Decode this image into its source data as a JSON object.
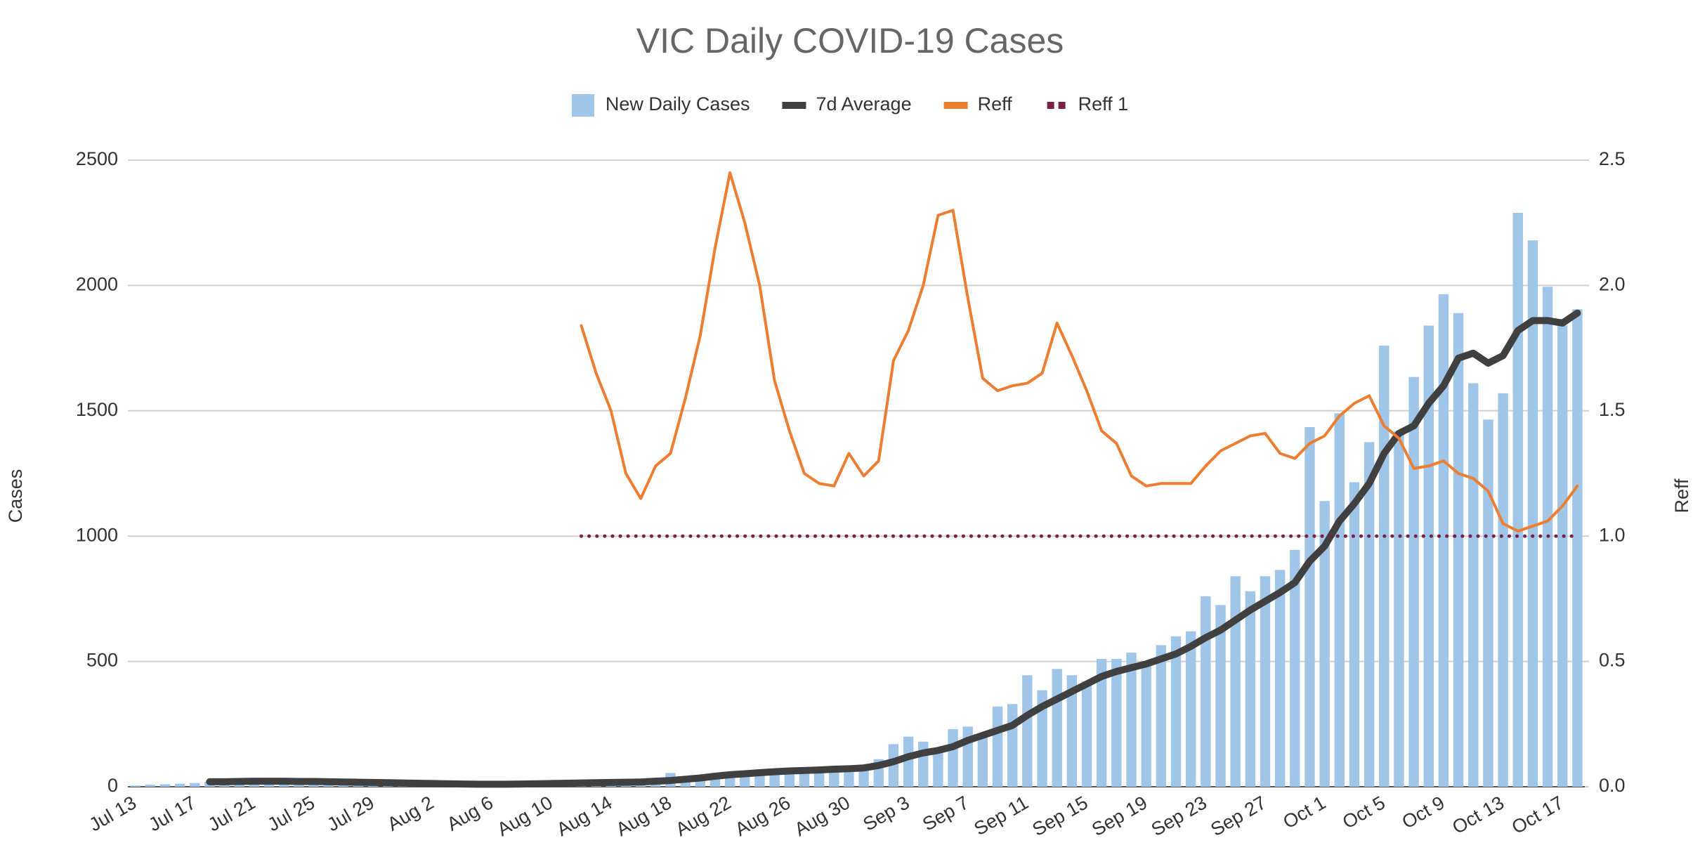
{
  "chart_data": {
    "type": "combo",
    "title": "VIC Daily COVID-19 Cases",
    "y_label": "Cases",
    "y2_label": "Reff",
    "categories": [
      "Jul 13",
      null,
      null,
      null,
      "Jul 17",
      null,
      null,
      null,
      "Jul 21",
      null,
      null,
      null,
      "Jul 25",
      null,
      null,
      null,
      "Jul 29",
      null,
      null,
      null,
      "Aug 2",
      null,
      null,
      null,
      "Aug 6",
      null,
      null,
      null,
      "Aug 10",
      null,
      null,
      null,
      "Aug 14",
      null,
      null,
      null,
      "Aug 18",
      null,
      null,
      null,
      "Aug 22",
      null,
      null,
      null,
      "Aug 26",
      null,
      null,
      null,
      "Aug 30",
      null,
      null,
      null,
      "Sep 3",
      null,
      null,
      null,
      "Sep 7",
      null,
      null,
      null,
      "Sep 11",
      null,
      null,
      null,
      "Sep 15",
      null,
      null,
      null,
      "Sep 19",
      null,
      null,
      null,
      "Sep 23",
      null,
      null,
      null,
      "Sep 27",
      null,
      null,
      null,
      "Oct 1",
      null,
      null,
      null,
      "Oct 5",
      null,
      null,
      null,
      "Oct 9",
      null,
      null,
      null,
      "Oct 13",
      null,
      null,
      null,
      "Oct 17",
      null
    ],
    "series": [
      {
        "name": "New Daily Cases",
        "type": "bar",
        "color": "#9fc5e8",
        "values": [
          5,
          8,
          10,
          12,
          15,
          20,
          18,
          15,
          18,
          20,
          22,
          18,
          15,
          16,
          14,
          12,
          10,
          12,
          10,
          8,
          8,
          6,
          5,
          6,
          8,
          10,
          12,
          14,
          15,
          18,
          20,
          22,
          20,
          18,
          25,
          30,
          55,
          40,
          45,
          55,
          60,
          50,
          55,
          60,
          65,
          70,
          65,
          75,
          85,
          80,
          110,
          170,
          200,
          180,
          150,
          230,
          240,
          200,
          320,
          330,
          445,
          385,
          470,
          445,
          420,
          510,
          510,
          535,
          500,
          565,
          600,
          620,
          760,
          725,
          840,
          780,
          840,
          865,
          945,
          1435,
          1140,
          1490,
          1215,
          1375,
          1760,
          1420,
          1635,
          1840,
          1965,
          1890,
          1610,
          1465,
          1570,
          2290,
          2180,
          1995,
          1840,
          1905
        ]
      },
      {
        "name": "7d Average",
        "type": "line",
        "color": "#404040",
        "style": "solid",
        "width": 10,
        "values": [
          null,
          null,
          null,
          null,
          null,
          20,
          20,
          21,
          22,
          22,
          22,
          21,
          21,
          20,
          19,
          18,
          17,
          16,
          15,
          14,
          13,
          12,
          11,
          10,
          10,
          10,
          11,
          12,
          13,
          14,
          15,
          16,
          17,
          18,
          19,
          22,
          25,
          30,
          35,
          42,
          48,
          52,
          56,
          60,
          63,
          65,
          67,
          70,
          72,
          75,
          85,
          100,
          120,
          135,
          145,
          160,
          185,
          205,
          225,
          245,
          285,
          320,
          350,
          380,
          410,
          440,
          460,
          475,
          490,
          510,
          530,
          560,
          595,
          625,
          665,
          705,
          740,
          775,
          815,
          900,
          960,
          1060,
          1130,
          1210,
          1330,
          1410,
          1440,
          1530,
          1600,
          1710,
          1730,
          1690,
          1720,
          1820,
          1860,
          1860,
          1850,
          1890
        ]
      },
      {
        "name": "Reff",
        "type": "line",
        "axis": "y2",
        "color": "#ed7d31",
        "style": "solid",
        "width": 4,
        "values": [
          null,
          null,
          null,
          null,
          null,
          null,
          null,
          null,
          null,
          null,
          null,
          null,
          null,
          null,
          null,
          null,
          null,
          null,
          null,
          null,
          null,
          null,
          null,
          null,
          null,
          null,
          null,
          null,
          null,
          null,
          1.84,
          1.65,
          1.5,
          1.25,
          1.15,
          1.28,
          1.33,
          1.55,
          1.8,
          2.15,
          2.45,
          2.25,
          2.0,
          1.62,
          1.42,
          1.25,
          1.21,
          1.2,
          1.33,
          1.24,
          1.3,
          1.7,
          1.82,
          2.0,
          2.28,
          2.3,
          1.95,
          1.63,
          1.58,
          1.6,
          1.61,
          1.65,
          1.85,
          1.72,
          1.58,
          1.42,
          1.37,
          1.24,
          1.2,
          1.21,
          1.21,
          1.21,
          1.28,
          1.34,
          1.37,
          1.4,
          1.41,
          1.33,
          1.31,
          1.37,
          1.4,
          1.48,
          1.53,
          1.56,
          1.44,
          1.39,
          1.27,
          1.28,
          1.3,
          1.25,
          1.23,
          1.18,
          1.05,
          1.02,
          1.04,
          1.06,
          1.12,
          1.2
        ]
      },
      {
        "name": "Reff 1",
        "type": "line",
        "axis": "y2",
        "color": "#7b1f45",
        "style": "dotted",
        "width": 5,
        "values": [
          null,
          null,
          null,
          null,
          null,
          null,
          null,
          null,
          null,
          null,
          null,
          null,
          null,
          null,
          null,
          null,
          null,
          null,
          null,
          null,
          null,
          null,
          null,
          null,
          null,
          null,
          null,
          null,
          null,
          null,
          1,
          1,
          1,
          1,
          1,
          1,
          1,
          1,
          1,
          1,
          1,
          1,
          1,
          1,
          1,
          1,
          1,
          1,
          1,
          1,
          1,
          1,
          1,
          1,
          1,
          1,
          1,
          1,
          1,
          1,
          1,
          1,
          1,
          1,
          1,
          1,
          1,
          1,
          1,
          1,
          1,
          1,
          1,
          1,
          1,
          1,
          1,
          1,
          1,
          1,
          1,
          1,
          1,
          1,
          1,
          1,
          1,
          1,
          1,
          1,
          1,
          1,
          1,
          1,
          1,
          1,
          1,
          1
        ]
      }
    ],
    "ylim": [
      0,
      2500
    ],
    "yticks": [
      0,
      500,
      1000,
      1500,
      2000,
      2500
    ],
    "y2lim": [
      0,
      2.5
    ],
    "y2ticks": [
      {
        "value": 0,
        "label": "0.0"
      },
      0.5,
      {
        "value": 1,
        "label": "1.0"
      },
      1.5,
      {
        "value": 2,
        "label": "2.0"
      },
      2.5
    ],
    "grid": true,
    "legend": "top"
  }
}
